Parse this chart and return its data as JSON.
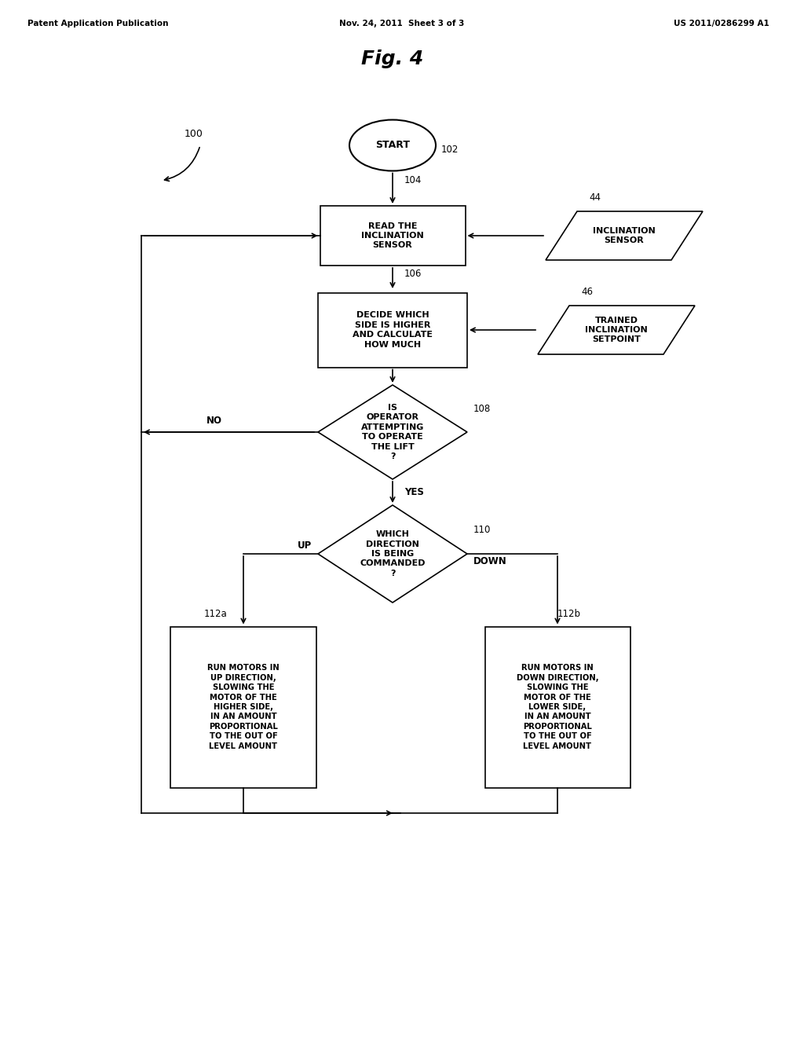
{
  "title": "Fig. 4",
  "header_left": "Patent Application Publication",
  "header_center": "Nov. 24, 2011  Sheet 3 of 3",
  "header_right": "US 2011/0286299 A1",
  "bg_color": "#ffffff",
  "text_color": "#000000",
  "label_100": "100",
  "label_102": "102",
  "label_104": "104",
  "label_106": "106",
  "label_108": "108",
  "label_110": "110",
  "label_112a": "112a",
  "label_112b": "112b",
  "label_44": "44",
  "label_46": "46",
  "node_start_text": "START",
  "node_104_text": "READ THE\nINCLINATION\nSENSOR",
  "node_44_text": "INCLINATION\nSENSOR",
  "node_106_text": "DECIDE WHICH\nSIDE IS HIGHER\nAND CALCULATE\nHOW MUCH",
  "node_46_text": "TRAINED\nINCLINATION\nSETPOINT",
  "node_108_text": "IS\nOPERATOR\nATTEMPTING\nTO OPERATE\nTHE LIFT\n?",
  "node_110_text": "WHICH\nDIRECTION\nIS BEING\nCOMMANDED\n?",
  "node_112a_text": "RUN MOTORS IN\nUP DIRECTION,\nSLOWING THE\nMOTOR OF THE\nHIGHER SIDE,\nIN AN AMOUNT\nPROPORTIONAL\nTO THE OUT OF\nLEVEL AMOUNT",
  "node_112b_text": "RUN MOTORS IN\nDOWN DIRECTION,\nSLOWING THE\nMOTOR OF THE\nLOWER SIDE,\nIN AN AMOUNT\nPROPORTIONAL\nTO THE OUT OF\nLEVEL AMOUNT"
}
